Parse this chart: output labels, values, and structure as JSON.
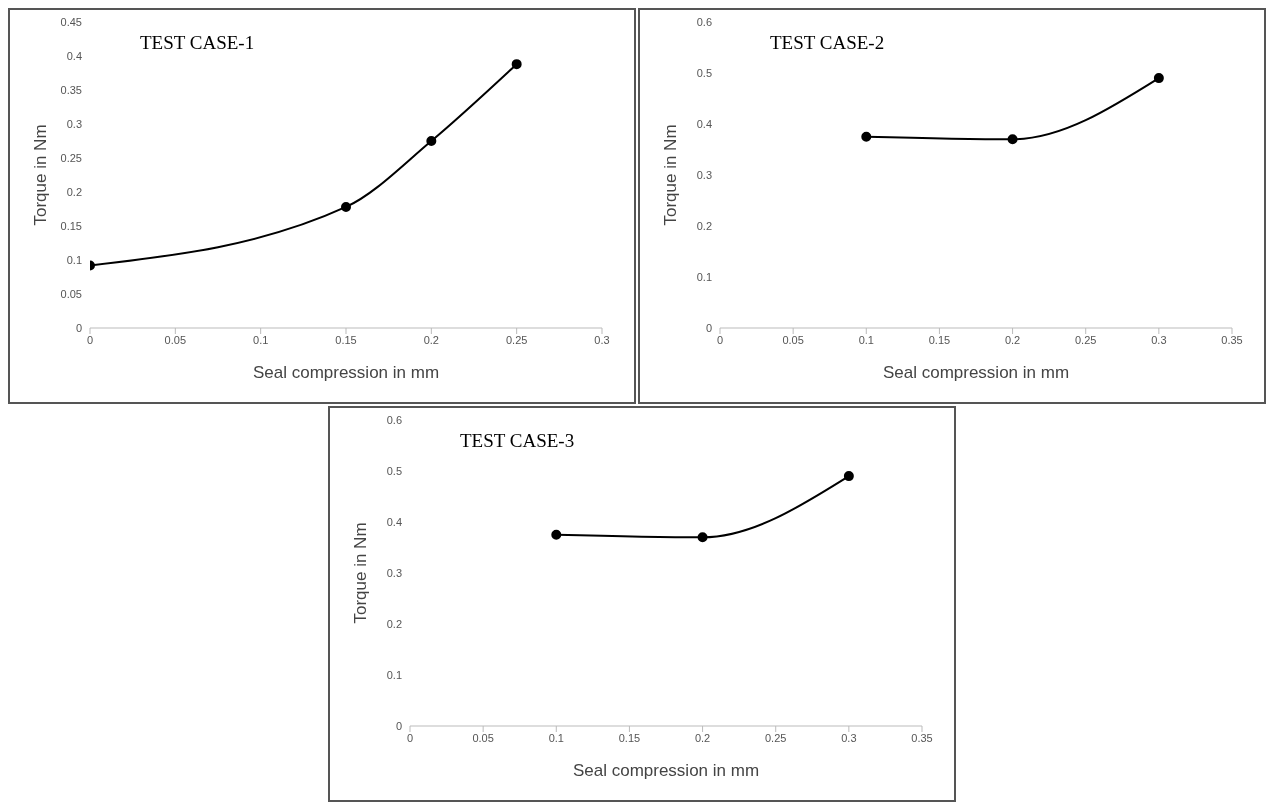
{
  "chart_data": [
    {
      "type": "line",
      "title": "TEST CASE-1",
      "xlabel": "Seal compression in mm",
      "ylabel": "Torque in Nm",
      "x": [
        0,
        0.15,
        0.2,
        0.25
      ],
      "series": [
        {
          "color": "#000000",
          "values": [
            0.092,
            0.178,
            0.275,
            0.388
          ]
        }
      ],
      "xlim": [
        0,
        0.3
      ],
      "xticks": [
        0,
        0.05,
        0.1,
        0.15,
        0.2,
        0.25,
        0.3
      ],
      "ylim": [
        0,
        0.45
      ],
      "yticks": [
        0,
        0.05,
        0.1,
        0.15,
        0.2,
        0.25,
        0.3,
        0.35,
        0.4,
        0.45
      ],
      "marker": "circle",
      "grid": false,
      "legend": false
    },
    {
      "type": "line",
      "title": "TEST CASE-2",
      "xlabel": "Seal compression in mm",
      "ylabel": "Torque in Nm",
      "x": [
        0.1,
        0.2,
        0.3
      ],
      "series": [
        {
          "color": "#000000",
          "values": [
            0.375,
            0.37,
            0.49
          ]
        }
      ],
      "xlim": [
        0,
        0.35
      ],
      "xticks": [
        0,
        0.05,
        0.1,
        0.15,
        0.2,
        0.25,
        0.3,
        0.35
      ],
      "ylim": [
        0,
        0.6
      ],
      "yticks": [
        0,
        0.1,
        0.2,
        0.3,
        0.4,
        0.5,
        0.6
      ],
      "marker": "circle",
      "grid": false,
      "legend": false
    },
    {
      "type": "line",
      "title": "TEST CASE-3",
      "xlabel": "Seal compression in mm",
      "ylabel": "Torque in Nm",
      "x": [
        0.1,
        0.2,
        0.3
      ],
      "series": [
        {
          "color": "#000000",
          "values": [
            0.375,
            0.37,
            0.49
          ]
        }
      ],
      "xlim": [
        0,
        0.35
      ],
      "xticks": [
        0,
        0.05,
        0.1,
        0.15,
        0.2,
        0.25,
        0.3,
        0.35
      ],
      "ylim": [
        0,
        0.6
      ],
      "yticks": [
        0,
        0.1,
        0.2,
        0.3,
        0.4,
        0.5,
        0.6
      ],
      "marker": "circle",
      "grid": false,
      "legend": false
    }
  ]
}
